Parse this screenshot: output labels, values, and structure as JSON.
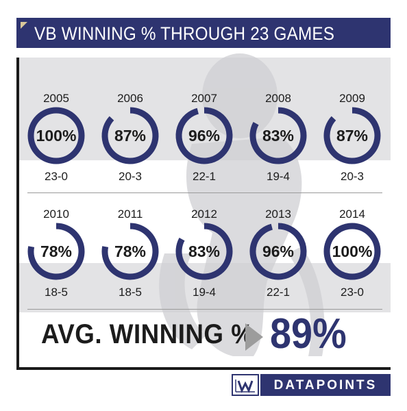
{
  "title": "VB WINNING % THROUGH 23 GAMES",
  "avg": {
    "label": "AVG. WINNING %",
    "value": "89%"
  },
  "footer": {
    "brand": "DATAPOINTS"
  },
  "colors": {
    "navy": "#2e3470",
    "band": "#e3e3e5",
    "arrow": "#9c9c9c",
    "text": "#1c1c1c"
  },
  "chart_data": {
    "type": "donut",
    "items": [
      {
        "year": "2005",
        "pct": 100,
        "label": "100%",
        "record": "23-0"
      },
      {
        "year": "2006",
        "pct": 87,
        "label": "87%",
        "record": "20-3"
      },
      {
        "year": "2007",
        "pct": 96,
        "label": "96%",
        "record": "22-1"
      },
      {
        "year": "2008",
        "pct": 83,
        "label": "83%",
        "record": "19-4"
      },
      {
        "year": "2009",
        "pct": 87,
        "label": "87%",
        "record": "20-3"
      },
      {
        "year": "2010",
        "pct": 78,
        "label": "78%",
        "record": "18-5"
      },
      {
        "year": "2011",
        "pct": 78,
        "label": "78%",
        "record": "18-5"
      },
      {
        "year": "2012",
        "pct": 83,
        "label": "83%",
        "record": "19-4"
      },
      {
        "year": "2013",
        "pct": 96,
        "label": "96%",
        "record": "22-1"
      },
      {
        "year": "2014",
        "pct": 100,
        "label": "100%",
        "record": "23-0"
      }
    ]
  }
}
